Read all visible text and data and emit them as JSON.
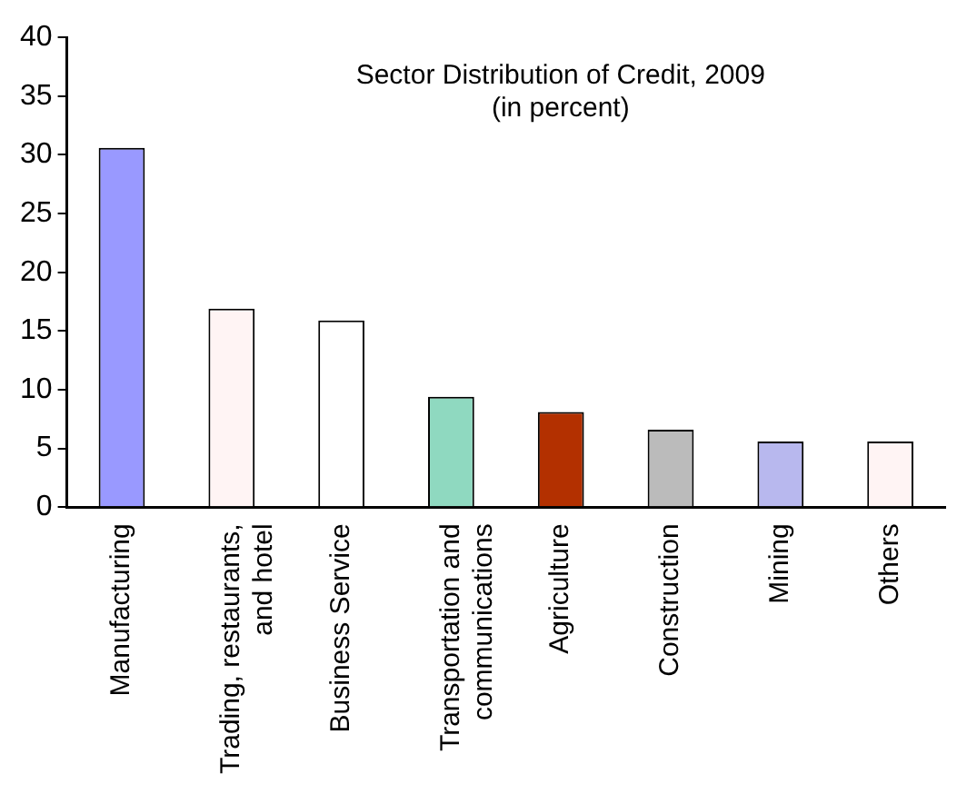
{
  "chart_data": {
    "type": "bar",
    "title": "Sector Distribution of Credit, 2009",
    "subtitle": "(in percent)",
    "categories": [
      "Manufacturing",
      "Trading, restaurants, and hotel",
      "Business Service",
      "Transportation and communications",
      "Agriculture",
      "Construction",
      "Mining",
      "Others"
    ],
    "values": [
      30.6,
      16.9,
      15.9,
      9.4,
      8.1,
      6.6,
      5.6,
      5.6
    ],
    "colors": [
      "#9999ff",
      "#fff4f4",
      "#ffffff",
      "#8fd9c0",
      "#b33000",
      "#bbbbbb",
      "#b8b8ee",
      "#fff4f4"
    ],
    "ylim": [
      0,
      40
    ],
    "yticks": [
      0,
      5,
      10,
      15,
      20,
      25,
      30,
      35,
      40
    ],
    "grid": false,
    "legend": false
  }
}
